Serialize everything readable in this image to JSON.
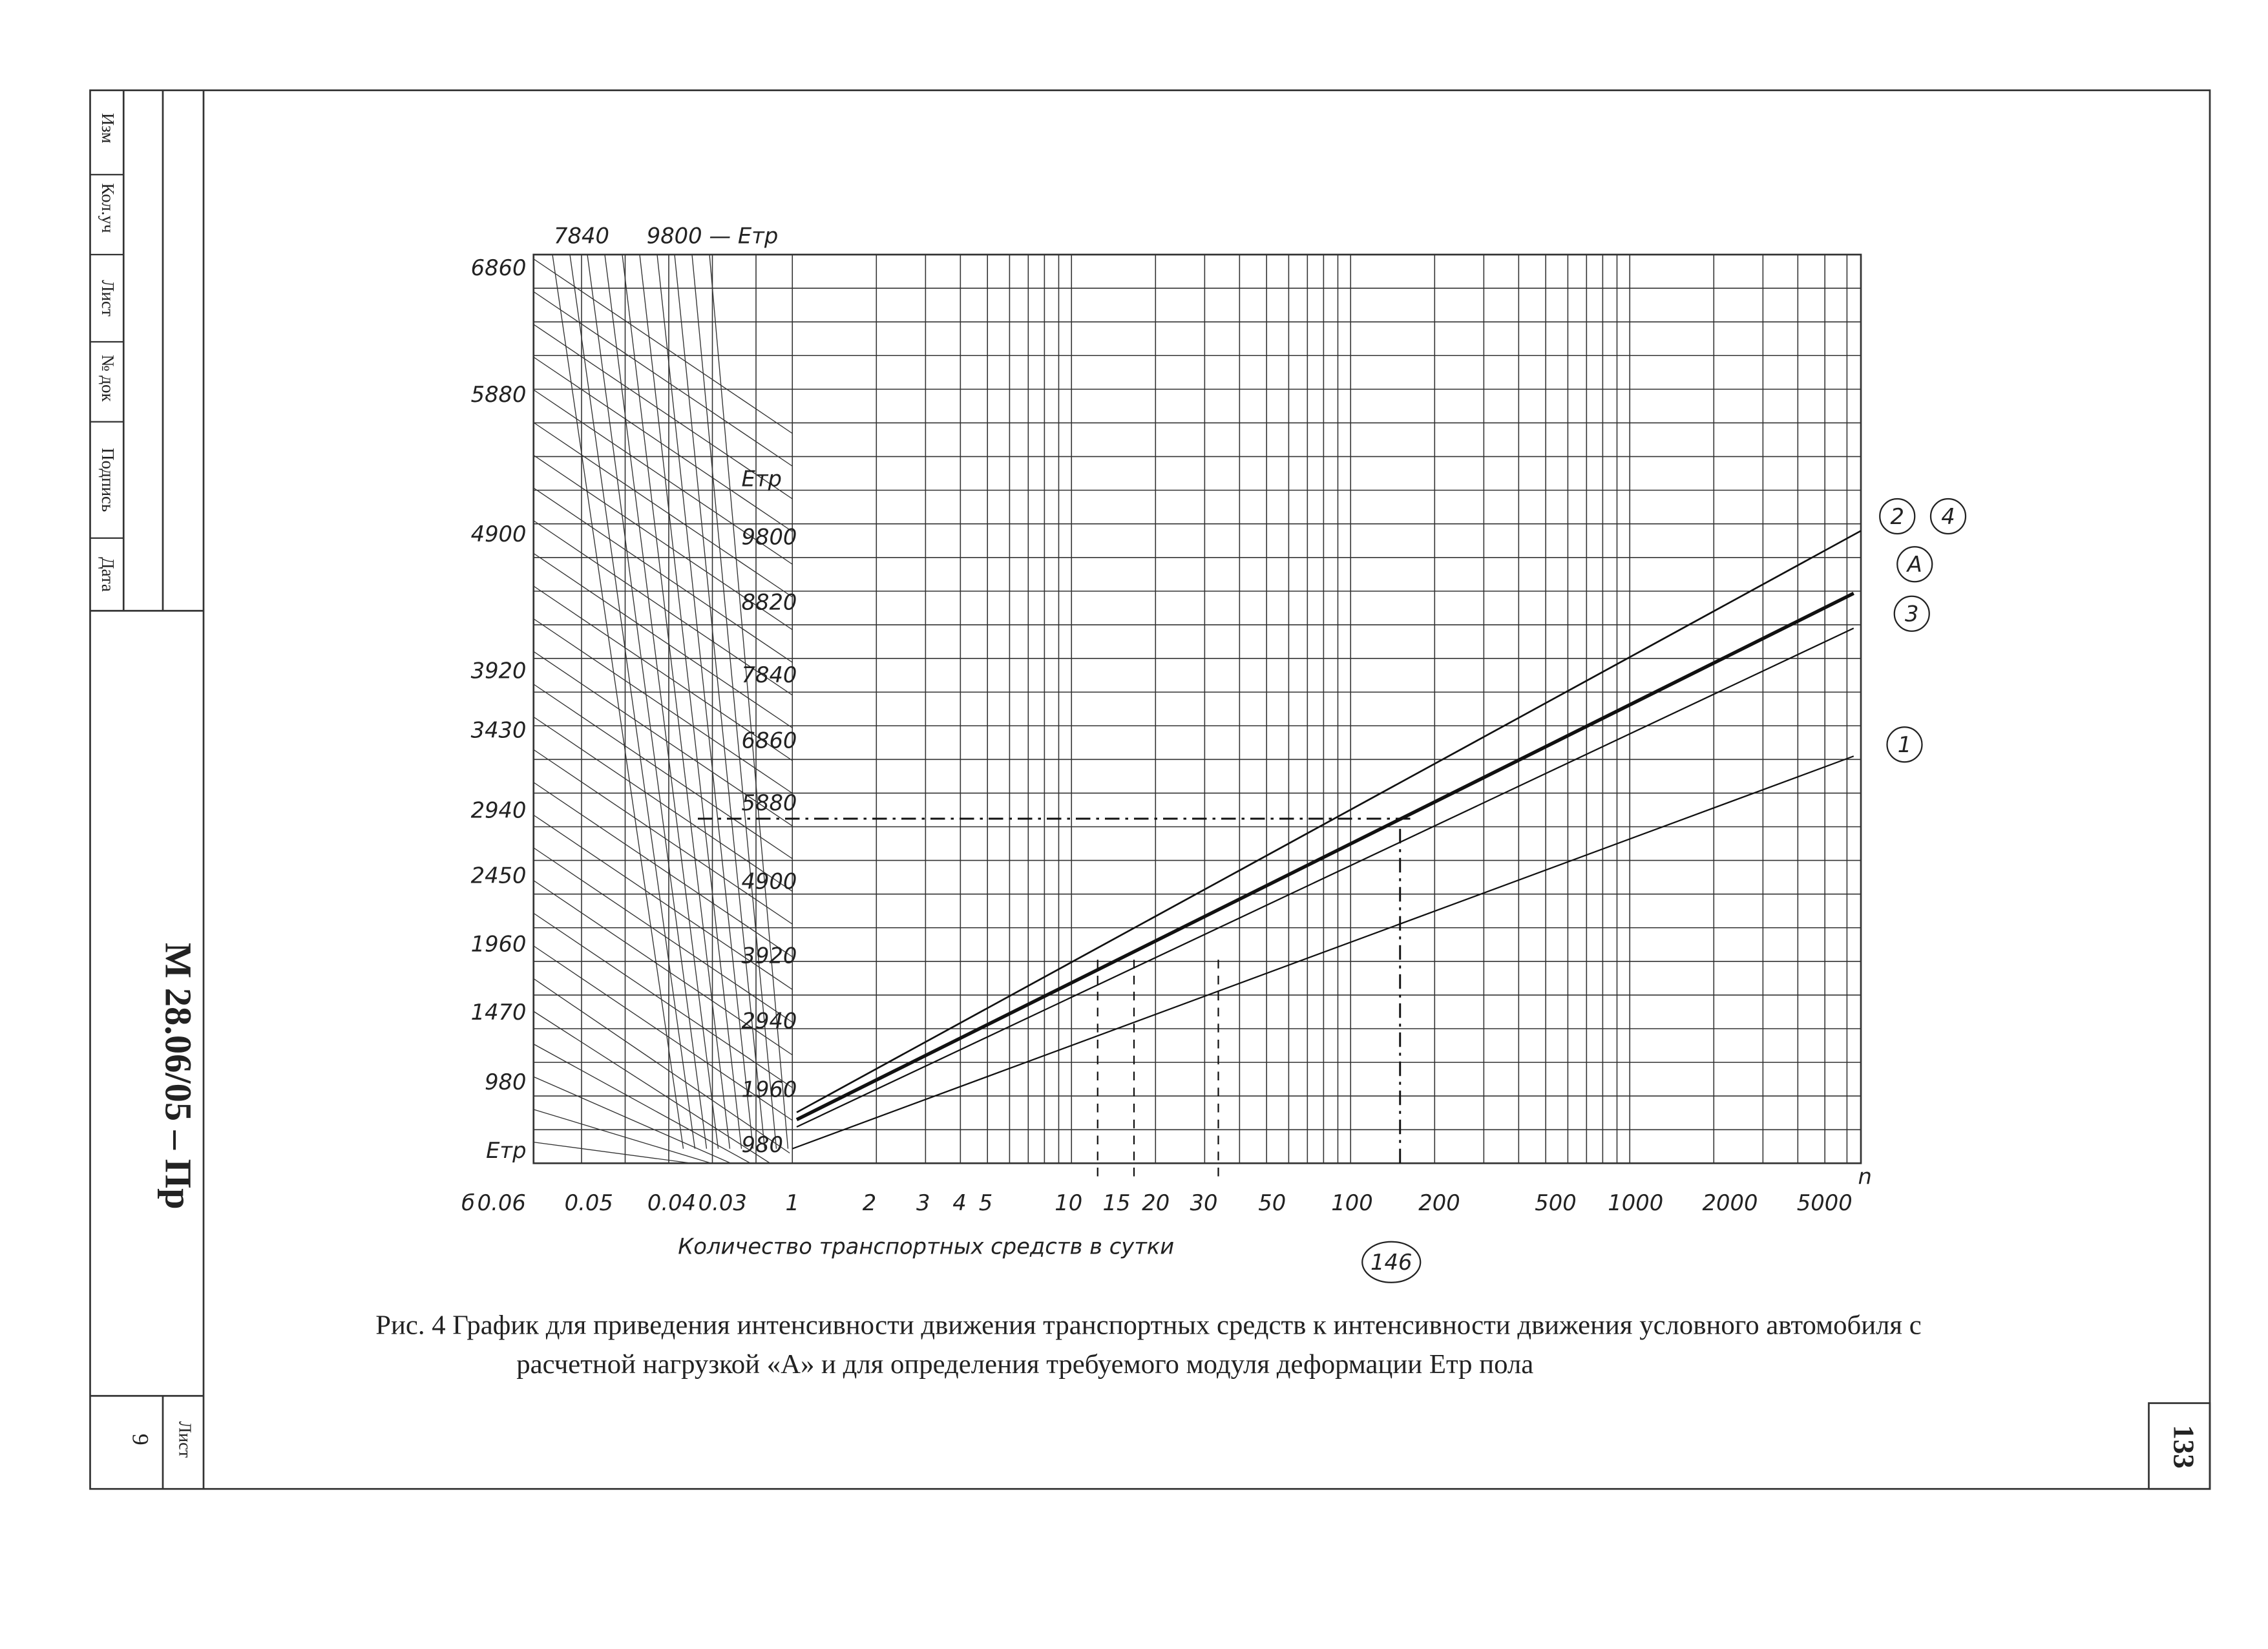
{
  "stamp": {
    "headers": [
      "Изм",
      "Кол.уч",
      "Лист",
      "№ док",
      "Подпись",
      "Дата"
    ],
    "code": "М 28.06/05 – Пр",
    "sheet_label": "Лист",
    "sheet_number": "9"
  },
  "page_number": "133",
  "figure": {
    "top_labels": [
      "7840",
      "9800 — Eтр"
    ],
    "left_axis_labels": [
      "6860",
      "5880",
      "4900",
      "3920",
      "3430",
      "2940",
      "2450",
      "1960",
      "1470",
      "980",
      "Eтр"
    ],
    "inner_axis_labels": [
      "Eтр",
      "9800",
      "8820",
      "7840",
      "6860",
      "5880",
      "4900",
      "3920",
      "2940",
      "1960",
      "980"
    ],
    "x_labels": [
      "б",
      "0.06",
      "0.05",
      "0.04",
      "0.03",
      "1",
      "2",
      "3",
      "4",
      "5",
      "10",
      "15",
      "20",
      "30",
      "50",
      "100",
      "200",
      "500",
      "1000",
      "2000",
      "5000"
    ],
    "x_axis_end": "n",
    "x_axis_title": "Количество транспортных средств в сутки",
    "marker": "146",
    "curve_labels": [
      "2",
      "4",
      "А",
      "3",
      "1"
    ],
    "caption": [
      "Рис. 4 График для приведения интенсивности движения транспортных средств к интенсивности движения условного автомобиля с",
      "расчетной нагрузкой «А» и для определения требуемого модуля деформации Eтр пола"
    ]
  }
}
